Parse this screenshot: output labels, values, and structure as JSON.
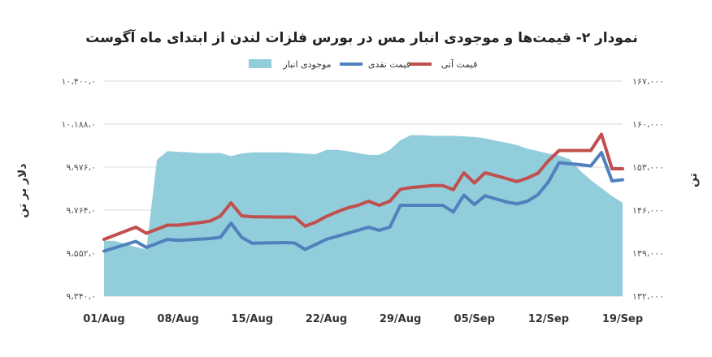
{
  "chart_data": {
    "type": "line",
    "title": "نمودار ۲- قیمت‌ها و موجودی انبار مس در بورس فلزات لندن از ابتدای ماه آگوست",
    "ylabel_left": "دلار بر تن",
    "ylabel_right": "تن",
    "ylim_left": [
      9340,
      10400
    ],
    "ylim_right": [
      132000,
      167000
    ],
    "y_ticks_left": [
      "۹،۳۴۰،۰",
      "۹،۵۵۲،۰",
      "۹،۷۶۴،۰",
      "۹،۹۷۶،۰",
      "۱۰،۱۸۸،۰",
      "۱۰،۴۰۰،۰"
    ],
    "y_ticks_right": [
      "۱۳۲،۰۰۰",
      "۱۳۹،۰۰۰",
      "۱۴۶،۰۰۰",
      "۱۵۳،۰۰۰",
      "۱۶۰،۰۰۰",
      "۱۶۷،۰۰۰"
    ],
    "x_tick_labels": [
      "01/Aug",
      "08/Aug",
      "15/Aug",
      "22/Aug",
      "29/Aug",
      "05/Sep",
      "12/Sep",
      "19/Sep"
    ],
    "x_tick_days": [
      1,
      8,
      15,
      22,
      29,
      36,
      43,
      50
    ],
    "grid": "horizontal",
    "legend_position": "top-center",
    "legend": [
      {
        "key": "futures",
        "label": "قیمت آتی",
        "color": "#C0504D"
      },
      {
        "key": "cash",
        "label": "قیمت نقدی",
        "color": "#4F81BD"
      },
      {
        "key": "stock",
        "label": "موجودی انبار",
        "color": "#92CDDC"
      }
    ],
    "series": [
      {
        "key": "stock",
        "axis": "right",
        "kind": "area",
        "color": "#92CDDC",
        "x": [
          1,
          2,
          3,
          4,
          5,
          6,
          7,
          8,
          9,
          10,
          11,
          12,
          13,
          14,
          15,
          16,
          17,
          18,
          19,
          20,
          21,
          22,
          23,
          24,
          25,
          26,
          27,
          28,
          29,
          30,
          31,
          32,
          33,
          34,
          35,
          36,
          37,
          38,
          39,
          40,
          41,
          42,
          43,
          44,
          45,
          46,
          47,
          48,
          49,
          50
        ],
        "values": [
          141000,
          141000,
          140500,
          140000,
          139600,
          154200,
          155600,
          155500,
          155400,
          155300,
          155300,
          155300,
          154800,
          155200,
          155400,
          155400,
          155400,
          155400,
          155300,
          155200,
          155100,
          155800,
          155800,
          155600,
          155300,
          155000,
          155000,
          155800,
          157400,
          158200,
          158200,
          158100,
          158100,
          158100,
          158000,
          157900,
          157700,
          157300,
          157000,
          156600,
          156000,
          155600,
          155200,
          154900,
          154300,
          152400,
          150900,
          149600,
          148300,
          147200
        ]
      },
      {
        "key": "cash",
        "axis": "left",
        "kind": "line",
        "color": "#4F81BD",
        "x": [
          1,
          2,
          3,
          4,
          5,
          6,
          7,
          8,
          9,
          10,
          11,
          12,
          13,
          14,
          15,
          16,
          17,
          18,
          19,
          20,
          21,
          22,
          23,
          24,
          25,
          26,
          27,
          28,
          29,
          30,
          31,
          32,
          33,
          34,
          35,
          36,
          37,
          38,
          39,
          40,
          41,
          42,
          43,
          44,
          45,
          46,
          47,
          48,
          49,
          50
        ],
        "values": [
          9562,
          9578,
          9594,
          9610,
          9580,
          9600,
          9620,
          9615,
          9618,
          9621,
          9624,
          9630,
          9700,
          9630,
          9601,
          9602,
          9603,
          9604,
          9602,
          9570,
          9595,
          9620,
          9635,
          9650,
          9665,
          9680,
          9665,
          9680,
          9788,
          9788,
          9788,
          9788,
          9788,
          9755,
          9838,
          9792,
          9835,
          9820,
          9805,
          9795,
          9808,
          9840,
          9904,
          9998,
          9993,
          9988,
          9982,
          10048,
          9908,
          9914
        ]
      },
      {
        "key": "futures",
        "axis": "left",
        "kind": "line",
        "color": "#C0504D",
        "x": [
          1,
          2,
          3,
          4,
          5,
          6,
          7,
          8,
          9,
          10,
          11,
          12,
          13,
          14,
          15,
          16,
          17,
          18,
          19,
          20,
          21,
          22,
          23,
          24,
          25,
          26,
          27,
          28,
          29,
          30,
          31,
          32,
          33,
          34,
          35,
          36,
          37,
          38,
          39,
          40,
          41,
          42,
          43,
          44,
          45,
          46,
          47,
          48,
          49,
          50
        ],
        "values": [
          9620,
          9640,
          9660,
          9680,
          9650,
          9670,
          9690,
          9690,
          9696,
          9702,
          9710,
          9735,
          9800,
          9736,
          9731,
          9731,
          9730,
          9730,
          9730,
          9685,
          9705,
          9733,
          9755,
          9775,
          9788,
          9808,
          9788,
          9808,
          9867,
          9875,
          9880,
          9885,
          9885,
          9865,
          9948,
          9898,
          9948,
          9935,
          9920,
          9905,
          9922,
          9946,
          10008,
          10058,
          10058,
          10058,
          10058,
          10138,
          9968,
          9968
        ]
      }
    ]
  }
}
